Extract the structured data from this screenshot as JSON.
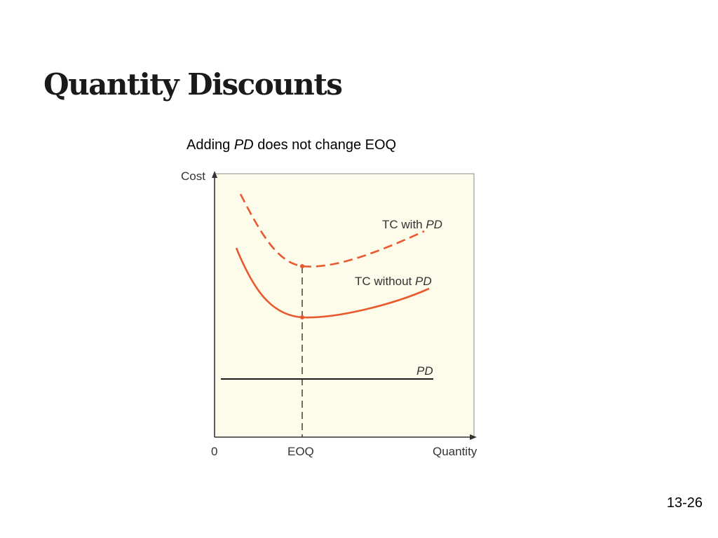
{
  "title": "Quantity Discounts",
  "subtitle": {
    "pre": "Adding ",
    "em": "PD",
    "post": " does not change EOQ"
  },
  "slide_number": "13-26",
  "diagram": {
    "y_axis_label": "Cost",
    "x_axis_label": "Quantity",
    "origin_label": "0",
    "eoq_label": "EOQ",
    "curve_with": {
      "text": "TC with ",
      "em": "PD",
      "color": "#e8592e",
      "style": "dashed"
    },
    "curve_without": {
      "text": "TC without ",
      "em": "PD",
      "color": "#e8592e",
      "style": "solid"
    },
    "pd_line": {
      "em": "PD",
      "color": "#1a1a1a"
    },
    "background": "#fdfbea"
  }
}
